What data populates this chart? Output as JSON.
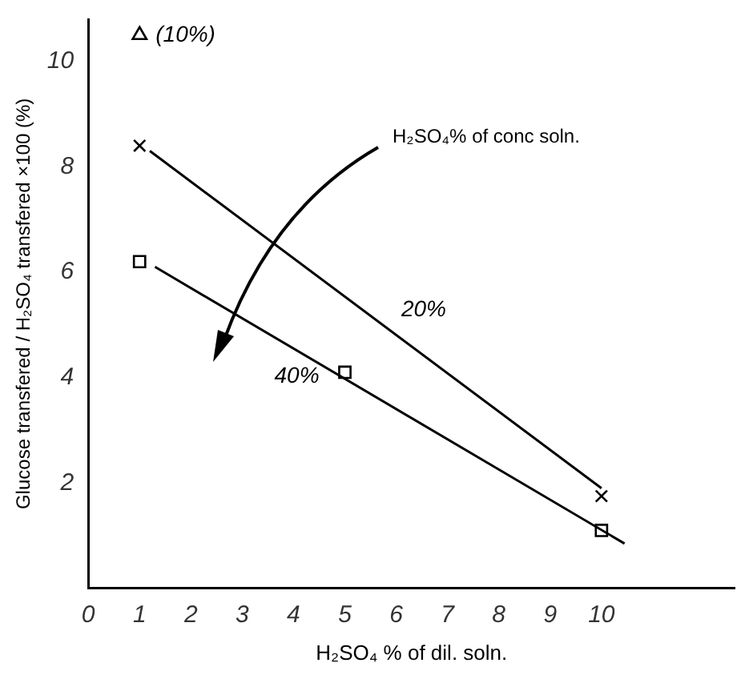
{
  "chart_data": {
    "type": "scatter",
    "xlabel": "H₂SO₄ % of dil. soln.",
    "ylabel": "Glucose transfered / H₂SO₄ transfered ×100 (%)",
    "annotations": [
      "H₂SO₄% of conc soln."
    ],
    "xlim": [
      0,
      12.6
    ],
    "xticks": [
      0,
      1,
      2,
      3,
      4,
      5,
      6,
      7,
      8,
      9,
      10
    ],
    "ylim": [
      0,
      10.8
    ],
    "yticks": [
      2,
      4,
      6,
      8,
      10
    ],
    "grid": false,
    "legend": false,
    "series": [
      {
        "type": "scatter",
        "name": "(10%)",
        "marker": "triangle",
        "color": "#000000",
        "x": [
          1
        ],
        "values": [
          10.5
        ]
      },
      {
        "type": "scatter",
        "marker": "cross",
        "color": "#000000",
        "x": [
          1,
          10
        ],
        "values": [
          8.4,
          1.75
        ]
      },
      {
        "type": "scatter",
        "marker": "square",
        "color": "#000000",
        "x": [
          1,
          5,
          10
        ],
        "values": [
          6.2,
          4.1,
          1.1
        ]
      },
      {
        "type": "line",
        "name": "20%",
        "marker": "none",
        "color": "#000000",
        "x": [
          1.2,
          10
        ],
        "values": [
          8.3,
          1.9
        ]
      },
      {
        "type": "line",
        "name": "40%",
        "marker": "none",
        "color": "#000000",
        "x": [
          1.3,
          10.45
        ],
        "values": [
          6.1,
          0.85
        ]
      }
    ]
  }
}
